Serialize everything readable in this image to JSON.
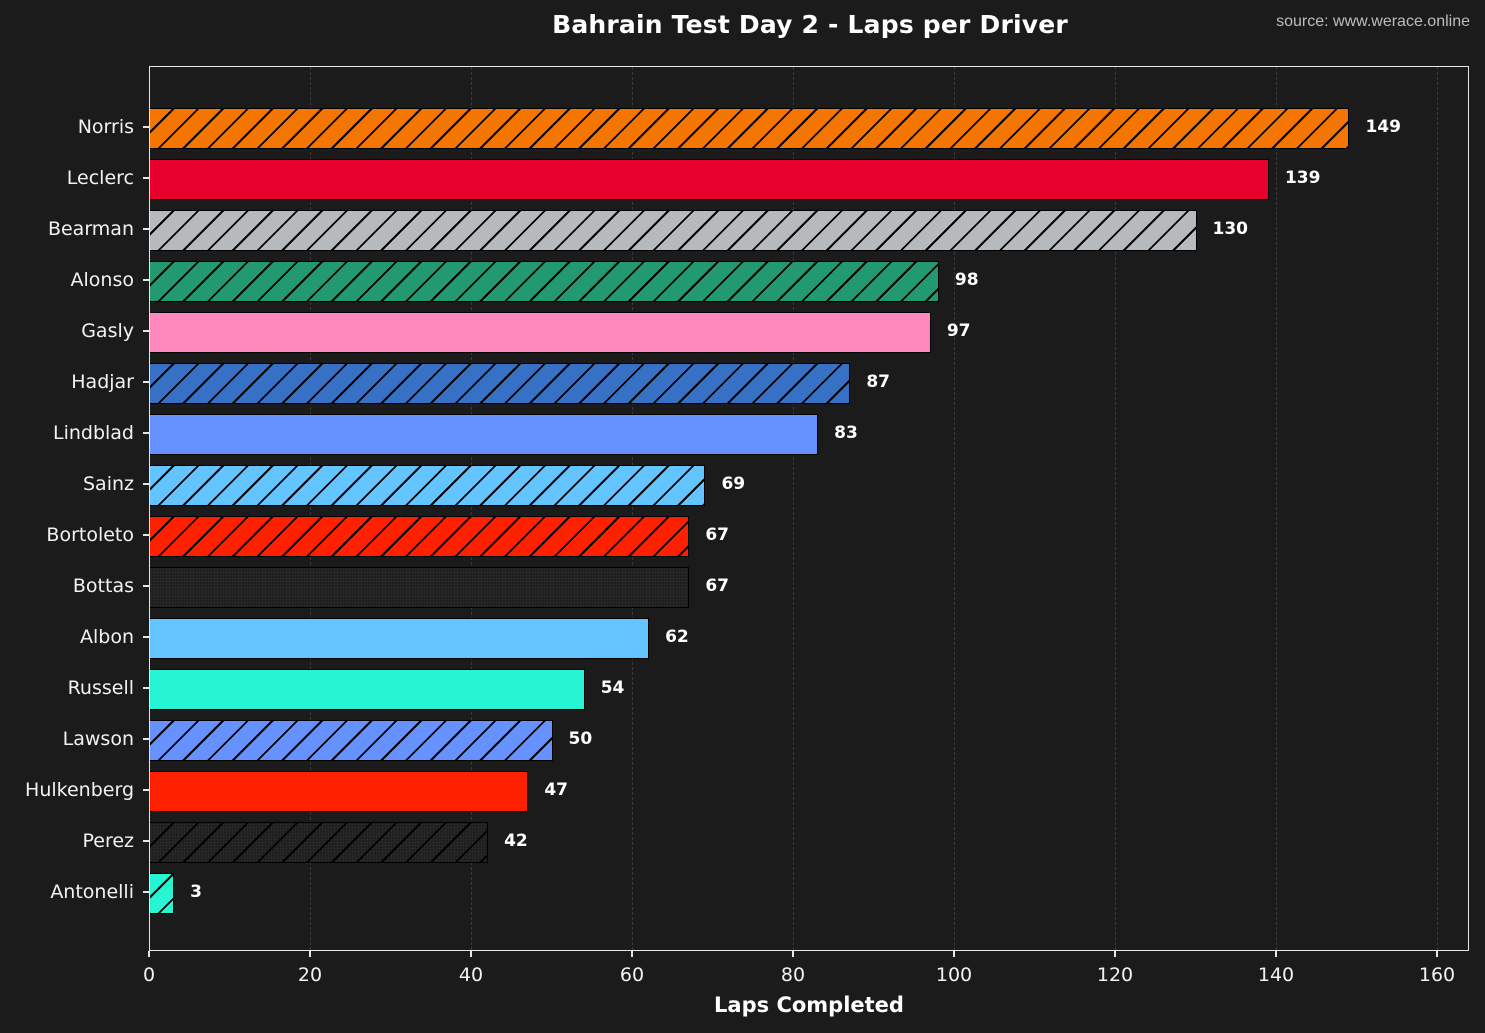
{
  "header": {
    "title": "Bahrain Test Day 2 - Laps per Driver",
    "source": "source: www.werace.online"
  },
  "axes": {
    "xlabel": "Laps Completed",
    "xticks": [
      "0",
      "20",
      "40",
      "60",
      "80",
      "100",
      "120",
      "140",
      "160"
    ]
  },
  "bars": [
    {
      "driver": "Norris",
      "laps": "149",
      "color": "#F47600",
      "pattern": "hatch"
    },
    {
      "driver": "Leclerc",
      "laps": "139",
      "color": "#E8002D",
      "pattern": "solid"
    },
    {
      "driver": "Bearman",
      "laps": "130",
      "color": "#B6BABD",
      "pattern": "hatch"
    },
    {
      "driver": "Alonso",
      "laps": "98",
      "color": "#229971",
      "pattern": "hatch"
    },
    {
      "driver": "Gasly",
      "laps": "97",
      "color": "#FF87BC",
      "pattern": "solid"
    },
    {
      "driver": "Hadjar",
      "laps": "87",
      "color": "#3671C6",
      "pattern": "hatch"
    },
    {
      "driver": "Lindblad",
      "laps": "83",
      "color": "#6692FF",
      "pattern": "solid"
    },
    {
      "driver": "Sainz",
      "laps": "69",
      "color": "#64C4FF",
      "pattern": "hatch"
    },
    {
      "driver": "Bortoleto",
      "laps": "67",
      "color": "#FF2000",
      "pattern": "hatch"
    },
    {
      "driver": "Bottas",
      "laps": "67",
      "color": "#1E1E1E",
      "pattern": "dots"
    },
    {
      "driver": "Albon",
      "laps": "62",
      "color": "#64C4FF",
      "pattern": "solid"
    },
    {
      "driver": "Russell",
      "laps": "54",
      "color": "#27F4D2",
      "pattern": "solid"
    },
    {
      "driver": "Lawson",
      "laps": "50",
      "color": "#6692FF",
      "pattern": "hatch"
    },
    {
      "driver": "Hulkenberg",
      "laps": "47",
      "color": "#FF2000",
      "pattern": "solid"
    },
    {
      "driver": "Perez",
      "laps": "42",
      "color": "#1E1E1E",
      "pattern": "dots-hatch"
    },
    {
      "driver": "Antonelli",
      "laps": "3",
      "color": "#27F4D2",
      "pattern": "hatch"
    }
  ],
  "chart_data": {
    "type": "bar",
    "orientation": "horizontal",
    "title": "Bahrain Test Day 2 - Laps per Driver",
    "annotation": "source: www.werace.online",
    "xlabel": "Laps Completed",
    "ylabel": "",
    "xlim": [
      0,
      164
    ],
    "xticks": [
      0,
      20,
      40,
      60,
      80,
      100,
      120,
      140,
      160
    ],
    "grid": {
      "x": true,
      "y": false,
      "style": "dashed"
    },
    "legend": null,
    "categories": [
      "Norris",
      "Leclerc",
      "Bearman",
      "Alonso",
      "Gasly",
      "Hadjar",
      "Lindblad",
      "Sainz",
      "Bortoleto",
      "Bottas",
      "Albon",
      "Russell",
      "Lawson",
      "Hulkenberg",
      "Perez",
      "Antonelli"
    ],
    "values": [
      149,
      139,
      130,
      98,
      97,
      87,
      83,
      69,
      67,
      67,
      62,
      54,
      50,
      47,
      42,
      3
    ],
    "colors": [
      "#F47600",
      "#E8002D",
      "#B6BABD",
      "#229971",
      "#FF87BC",
      "#3671C6",
      "#6692FF",
      "#64C4FF",
      "#FF2000",
      "#1E1E1E",
      "#64C4FF",
      "#27F4D2",
      "#6692FF",
      "#FF2000",
      "#1E1E1E",
      "#27F4D2"
    ],
    "data_labels": true
  }
}
